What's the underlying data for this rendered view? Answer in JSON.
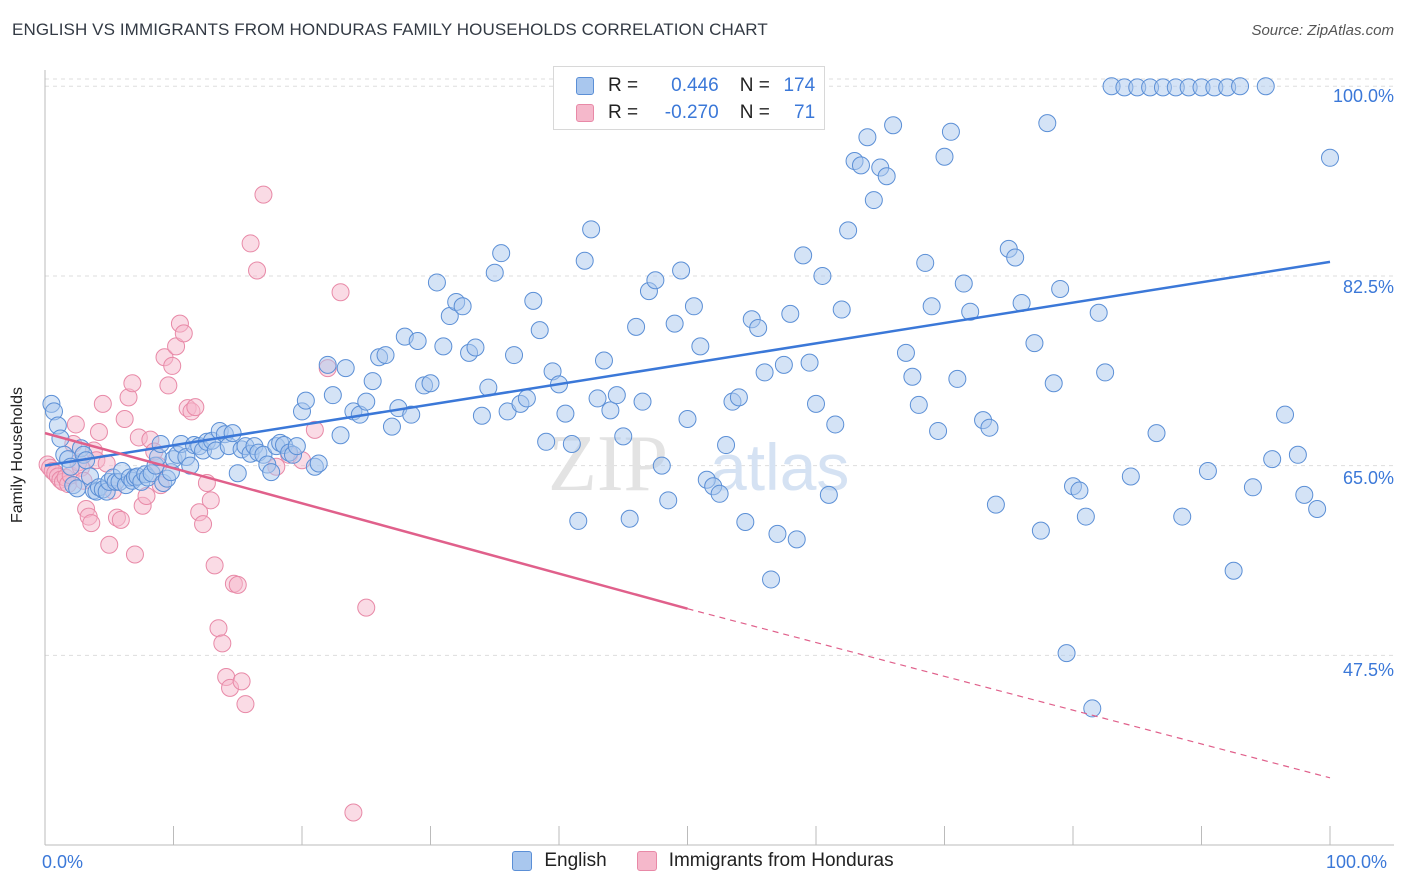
{
  "title": "ENGLISH VS IMMIGRANTS FROM HONDURAS FAMILY HOUSEHOLDS CORRELATION CHART",
  "source": "Source: ZipAtlas.com",
  "watermark": {
    "zip": "ZIP",
    "atlas": "atlas"
  },
  "legend_top": {
    "english": {
      "r_label": "R =",
      "r_value": "0.446",
      "n_label": "N =",
      "n_value": "174"
    },
    "honduras": {
      "r_label": "R =",
      "r_value": "-0.270",
      "n_label": "N =",
      "n_value": "71"
    }
  },
  "legend_bottom": {
    "english": "English",
    "honduras": "Immigrants from Honduras"
  },
  "colors": {
    "english_fill": "#a9c7ee",
    "english_stroke": "#5b8fd6",
    "english_line": "#3b78d8",
    "honduras_fill": "#f5b8cb",
    "honduras_stroke": "#e889a7",
    "honduras_line": "#e0608b",
    "axis_text": "#3b78d8",
    "grid": "#dddddd"
  },
  "chart_data": {
    "type": "scatter",
    "title": "ENGLISH VS IMMIGRANTS FROM HONDURAS FAMILY HOUSEHOLDS CORRELATION CHART",
    "xlabel": "",
    "ylabel": "Family Households",
    "xlim": [
      0,
      100
    ],
    "ylim": [
      30,
      101.5
    ],
    "x_tick_labels": [
      "0.0%",
      "100.0%"
    ],
    "y_ticks": [
      47.5,
      65.0,
      82.5,
      100.0
    ],
    "y_tick_labels": [
      "47.5%",
      "65.0%",
      "82.5%",
      "100.0%"
    ],
    "grid": true,
    "legend": "top-center",
    "series": [
      {
        "name": "English",
        "r": 0.446,
        "n": 174,
        "trend": {
          "x": [
            0,
            100
          ],
          "y": [
            65.0,
            83.8
          ]
        },
        "points": [
          [
            0.5,
            70.7
          ],
          [
            0.7,
            70.0
          ],
          [
            1.0,
            68.7
          ],
          [
            1.2,
            67.5
          ],
          [
            1.5,
            66.0
          ],
          [
            1.8,
            65.6
          ],
          [
            2.0,
            64.9
          ],
          [
            2.2,
            63.2
          ],
          [
            2.5,
            62.9
          ],
          [
            2.8,
            66.6
          ],
          [
            3.0,
            66.0
          ],
          [
            3.2,
            65.5
          ],
          [
            3.5,
            64.0
          ],
          [
            3.8,
            62.7
          ],
          [
            4.0,
            62.6
          ],
          [
            4.2,
            63.0
          ],
          [
            4.5,
            62.8
          ],
          [
            4.8,
            62.6
          ],
          [
            5.0,
            63.5
          ],
          [
            5.3,
            63.9
          ],
          [
            5.5,
            63.5
          ],
          [
            5.8,
            63.5
          ],
          [
            6.0,
            64.5
          ],
          [
            6.3,
            63.2
          ],
          [
            6.6,
            63.9
          ],
          [
            6.8,
            63.6
          ],
          [
            7.0,
            63.9
          ],
          [
            7.2,
            64.0
          ],
          [
            7.5,
            63.5
          ],
          [
            7.8,
            64.2
          ],
          [
            8.0,
            63.9
          ],
          [
            8.3,
            64.3
          ],
          [
            8.6,
            65.0
          ],
          [
            8.8,
            65.8
          ],
          [
            9.0,
            67.0
          ],
          [
            9.2,
            63.4
          ],
          [
            9.5,
            63.8
          ],
          [
            9.8,
            64.4
          ],
          [
            10.0,
            65.6
          ],
          [
            10.3,
            66.0
          ],
          [
            10.6,
            67.0
          ],
          [
            11.0,
            65.8
          ],
          [
            11.3,
            65.0
          ],
          [
            11.6,
            66.9
          ],
          [
            12.0,
            66.8
          ],
          [
            12.3,
            66.4
          ],
          [
            12.6,
            67.2
          ],
          [
            13.0,
            67.3
          ],
          [
            13.3,
            66.4
          ],
          [
            13.6,
            68.2
          ],
          [
            14.0,
            67.9
          ],
          [
            14.3,
            66.8
          ],
          [
            14.6,
            68.0
          ],
          [
            15.0,
            64.3
          ],
          [
            15.3,
            66.5
          ],
          [
            15.6,
            66.8
          ],
          [
            16.0,
            66.1
          ],
          [
            16.3,
            66.8
          ],
          [
            16.6,
            66.2
          ],
          [
            17.0,
            66.0
          ],
          [
            17.3,
            65.1
          ],
          [
            17.6,
            64.4
          ],
          [
            18.0,
            66.8
          ],
          [
            18.3,
            67.1
          ],
          [
            18.6,
            66.9
          ],
          [
            19.0,
            66.2
          ],
          [
            19.3,
            66.0
          ],
          [
            19.6,
            66.8
          ],
          [
            20.0,
            70.0
          ],
          [
            20.3,
            71.0
          ],
          [
            21.0,
            64.9
          ],
          [
            21.3,
            65.2
          ],
          [
            22.0,
            74.3
          ],
          [
            22.4,
            71.5
          ],
          [
            23.0,
            67.8
          ],
          [
            23.4,
            74.0
          ],
          [
            24.0,
            70.0
          ],
          [
            24.5,
            69.7
          ],
          [
            25.0,
            70.9
          ],
          [
            25.5,
            72.8
          ],
          [
            26.0,
            75.0
          ],
          [
            26.5,
            75.2
          ],
          [
            27.0,
            68.6
          ],
          [
            27.5,
            70.3
          ],
          [
            28.0,
            76.9
          ],
          [
            28.5,
            69.7
          ],
          [
            29.0,
            76.5
          ],
          [
            29.5,
            72.4
          ],
          [
            30.0,
            72.6
          ],
          [
            30.5,
            81.9
          ],
          [
            31.0,
            76.0
          ],
          [
            31.5,
            78.8
          ],
          [
            32.0,
            80.1
          ],
          [
            32.5,
            79.7
          ],
          [
            33.0,
            75.4
          ],
          [
            33.5,
            75.9
          ],
          [
            34.0,
            69.6
          ],
          [
            34.5,
            72.2
          ],
          [
            35.0,
            82.8
          ],
          [
            35.5,
            84.6
          ],
          [
            36.0,
            70.0
          ],
          [
            36.5,
            75.2
          ],
          [
            37.0,
            70.7
          ],
          [
            37.5,
            71.2
          ],
          [
            38.0,
            80.2
          ],
          [
            38.5,
            77.5
          ],
          [
            39.0,
            67.2
          ],
          [
            39.5,
            73.7
          ],
          [
            40.0,
            72.5
          ],
          [
            40.5,
            69.8
          ],
          [
            41.0,
            67.0
          ],
          [
            41.5,
            59.9
          ],
          [
            42.0,
            83.9
          ],
          [
            42.5,
            86.8
          ],
          [
            43.0,
            71.2
          ],
          [
            43.5,
            74.7
          ],
          [
            44.0,
            70.1
          ],
          [
            44.5,
            71.5
          ],
          [
            45.0,
            67.7
          ],
          [
            45.5,
            60.1
          ],
          [
            46.0,
            77.8
          ],
          [
            46.5,
            70.9
          ],
          [
            47.0,
            81.1
          ],
          [
            47.5,
            82.1
          ],
          [
            48.0,
            65.0
          ],
          [
            48.5,
            61.8
          ],
          [
            49.0,
            78.1
          ],
          [
            49.5,
            83.0
          ],
          [
            50.0,
            69.3
          ],
          [
            50.5,
            79.7
          ],
          [
            51.0,
            76.0
          ],
          [
            51.5,
            63.7
          ],
          [
            52.0,
            63.1
          ],
          [
            52.5,
            62.4
          ],
          [
            53.0,
            66.9
          ],
          [
            53.5,
            70.9
          ],
          [
            54.0,
            71.3
          ],
          [
            54.5,
            59.8
          ],
          [
            55.0,
            78.5
          ],
          [
            55.5,
            77.7
          ],
          [
            56.0,
            73.6
          ],
          [
            56.5,
            54.5
          ],
          [
            57.0,
            58.7
          ],
          [
            57.5,
            74.3
          ],
          [
            58.0,
            79.0
          ],
          [
            58.5,
            58.2
          ],
          [
            59.0,
            84.4
          ],
          [
            59.5,
            74.5
          ],
          [
            60.0,
            70.7
          ],
          [
            60.5,
            82.5
          ],
          [
            61.0,
            62.3
          ],
          [
            61.5,
            68.8
          ],
          [
            62.0,
            79.4
          ],
          [
            62.5,
            86.7
          ],
          [
            63.0,
            93.1
          ],
          [
            63.5,
            92.7
          ],
          [
            64.0,
            95.3
          ],
          [
            64.5,
            89.5
          ],
          [
            65.0,
            92.5
          ],
          [
            65.5,
            91.7
          ],
          [
            66.0,
            96.4
          ],
          [
            67.0,
            75.4
          ],
          [
            67.5,
            73.2
          ],
          [
            68.0,
            70.6
          ],
          [
            68.5,
            83.7
          ],
          [
            69.0,
            79.7
          ],
          [
            69.5,
            68.2
          ],
          [
            70.0,
            93.5
          ],
          [
            70.5,
            95.8
          ],
          [
            71.0,
            73.0
          ],
          [
            71.5,
            81.8
          ],
          [
            72.0,
            79.2
          ],
          [
            73.0,
            69.2
          ],
          [
            73.5,
            68.5
          ],
          [
            74.0,
            61.4
          ],
          [
            75.0,
            85.0
          ],
          [
            75.5,
            84.2
          ],
          [
            76.0,
            80.0
          ],
          [
            77.0,
            76.3
          ],
          [
            77.5,
            59.0
          ],
          [
            78.0,
            96.6
          ],
          [
            78.5,
            72.6
          ],
          [
            79.0,
            81.3
          ],
          [
            79.5,
            47.7
          ],
          [
            80.0,
            63.1
          ],
          [
            80.5,
            62.7
          ],
          [
            81.0,
            60.3
          ],
          [
            81.5,
            42.6
          ],
          [
            82.0,
            79.1
          ],
          [
            82.5,
            73.6
          ],
          [
            83.0,
            100.0
          ],
          [
            84.0,
            99.9
          ],
          [
            85.0,
            99.9
          ],
          [
            86.0,
            99.9
          ],
          [
            87.0,
            99.9
          ],
          [
            88.0,
            99.9
          ],
          [
            89.0,
            99.9
          ],
          [
            90.0,
            99.9
          ],
          [
            91.0,
            99.9
          ],
          [
            92.0,
            99.9
          ],
          [
            93.0,
            100.0
          ],
          [
            95.0,
            100.0
          ],
          [
            84.5,
            64.0
          ],
          [
            86.5,
            68.0
          ],
          [
            88.5,
            60.3
          ],
          [
            90.5,
            64.5
          ],
          [
            92.5,
            55.3
          ],
          [
            94.0,
            63.0
          ],
          [
            95.5,
            65.6
          ],
          [
            96.5,
            69.7
          ],
          [
            97.5,
            66.0
          ],
          [
            98.0,
            62.3
          ],
          [
            100.0,
            93.4
          ],
          [
            99.0,
            61.0
          ]
        ]
      },
      {
        "name": "Immigrants from Honduras",
        "r": -0.27,
        "n": 71,
        "trend": {
          "x": [
            0,
            50
          ],
          "y": [
            68.0,
            51.8
          ]
        },
        "trend_dashed": {
          "x": [
            50,
            100
          ],
          "y": [
            51.8,
            36.2
          ]
        },
        "points": [
          [
            0.2,
            65.1
          ],
          [
            0.4,
            64.8
          ],
          [
            0.6,
            64.5
          ],
          [
            0.8,
            64.3
          ],
          [
            1.0,
            64.0
          ],
          [
            1.2,
            63.7
          ],
          [
            1.4,
            63.5
          ],
          [
            1.6,
            63.9
          ],
          [
            1.8,
            63.3
          ],
          [
            2.0,
            64.1
          ],
          [
            2.2,
            67.0
          ],
          [
            2.4,
            68.8
          ],
          [
            2.6,
            65.3
          ],
          [
            2.8,
            64.8
          ],
          [
            3.0,
            63.6
          ],
          [
            3.2,
            61.0
          ],
          [
            3.4,
            60.3
          ],
          [
            3.6,
            59.7
          ],
          [
            3.8,
            66.4
          ],
          [
            4.0,
            65.5
          ],
          [
            4.2,
            68.1
          ],
          [
            4.5,
            70.7
          ],
          [
            4.8,
            65.2
          ],
          [
            5.0,
            57.7
          ],
          [
            5.3,
            62.7
          ],
          [
            5.6,
            60.2
          ],
          [
            5.9,
            60.0
          ],
          [
            6.2,
            69.3
          ],
          [
            6.5,
            71.3
          ],
          [
            6.8,
            72.6
          ],
          [
            7.0,
            56.8
          ],
          [
            7.3,
            67.6
          ],
          [
            7.6,
            61.3
          ],
          [
            7.9,
            62.2
          ],
          [
            8.2,
            67.4
          ],
          [
            8.5,
            66.3
          ],
          [
            8.8,
            65.0
          ],
          [
            9.0,
            63.2
          ],
          [
            9.3,
            75.0
          ],
          [
            9.6,
            72.4
          ],
          [
            9.9,
            74.2
          ],
          [
            10.2,
            76.0
          ],
          [
            10.5,
            78.1
          ],
          [
            10.8,
            77.2
          ],
          [
            11.1,
            70.3
          ],
          [
            11.4,
            70.0
          ],
          [
            11.7,
            70.4
          ],
          [
            12.0,
            60.7
          ],
          [
            12.3,
            59.6
          ],
          [
            12.6,
            63.4
          ],
          [
            12.9,
            61.8
          ],
          [
            13.2,
            55.8
          ],
          [
            13.5,
            50.0
          ],
          [
            13.8,
            48.6
          ],
          [
            14.1,
            45.5
          ],
          [
            14.4,
            44.5
          ],
          [
            14.7,
            54.1
          ],
          [
            15.0,
            54.0
          ],
          [
            15.3,
            45.1
          ],
          [
            15.6,
            43.0
          ],
          [
            16.0,
            85.5
          ],
          [
            16.5,
            83.0
          ],
          [
            17.0,
            90.0
          ],
          [
            18.0,
            64.9
          ],
          [
            19.0,
            66.0
          ],
          [
            20.0,
            65.5
          ],
          [
            21.0,
            68.3
          ],
          [
            22.0,
            74.0
          ],
          [
            23.0,
            81.0
          ],
          [
            24.0,
            33.0
          ],
          [
            25.0,
            51.9
          ]
        ]
      }
    ]
  }
}
